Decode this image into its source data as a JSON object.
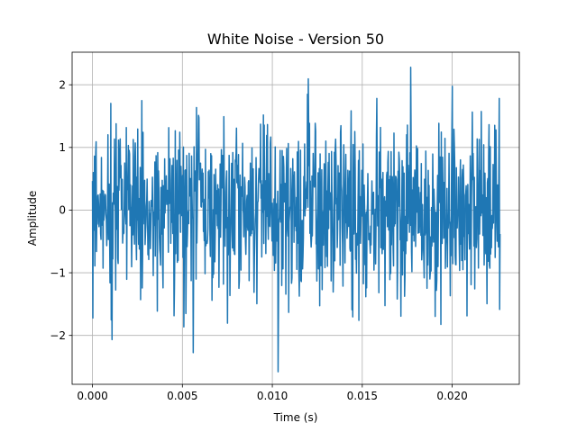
{
  "chart_data": {
    "type": "line",
    "title": "White Noise - Version 50",
    "xlabel": "Time (s)",
    "ylabel": "Amplitude",
    "xlim": [
      -0.00113,
      0.02373
    ],
    "ylim": [
      -2.78,
      2.52
    ],
    "xticks": [
      0.0,
      0.005,
      0.01,
      0.015,
      0.02
    ],
    "xtick_labels": [
      "0.000",
      "0.005",
      "0.010",
      "0.015",
      "0.020"
    ],
    "yticks": [
      -2,
      -1,
      0,
      1,
      2
    ],
    "ytick_labels": [
      "−2",
      "−1",
      "0",
      "1",
      "2"
    ],
    "grid": true,
    "legend": "none",
    "series": [
      {
        "color": "#1f77b4",
        "sample_rate_hz": 44100,
        "num_samples": 1000,
        "x_start": 0.0,
        "x_end": 0.02266,
        "y_mean": 0.0,
        "y_std": 0.72,
        "y_min": -2.58,
        "y_max": 2.28
      }
    ]
  }
}
